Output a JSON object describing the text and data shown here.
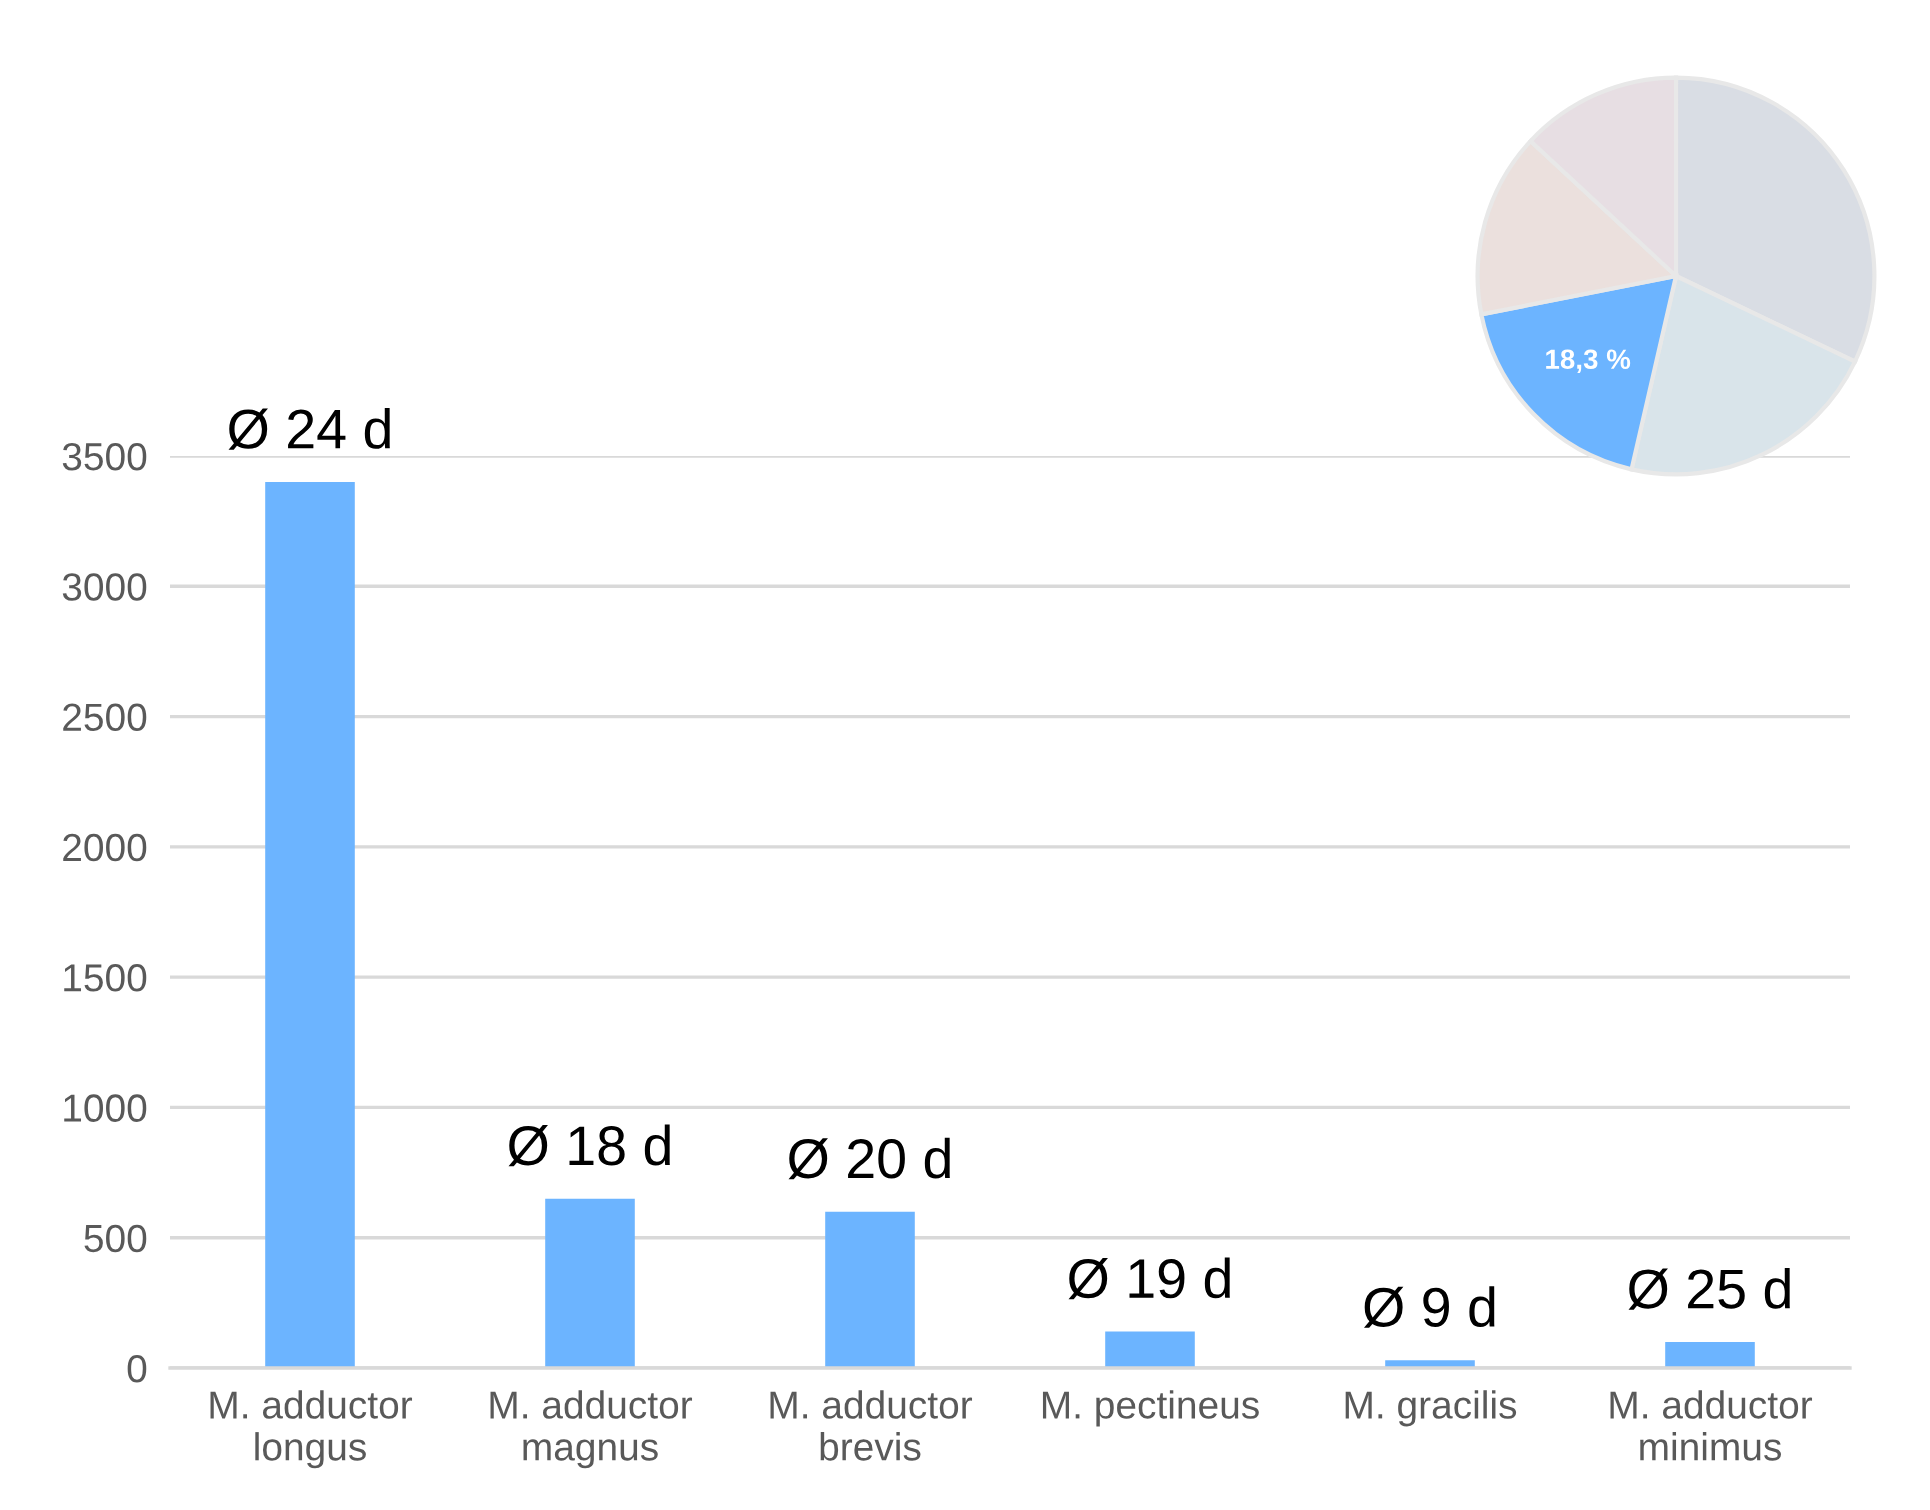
{
  "chart_data": [
    {
      "type": "bar",
      "categories": [
        "M. adductor\nlongus",
        "M. adductor\nmagnus",
        "M. adductor\nbrevis",
        "M. pectineus",
        "M. gracilis",
        "M. adductor\nminimus"
      ],
      "values": [
        3400,
        650,
        600,
        140,
        30,
        100
      ],
      "color": "#6cb4ff",
      "ylim": [
        0,
        3500
      ],
      "yticks": [
        0,
        500,
        1000,
        1500,
        2000,
        2500,
        3000,
        3500
      ],
      "grid": "y",
      "legend": false,
      "annotations": [
        {
          "text": "Ø 24 d",
          "x": "M. adductor\nlongus",
          "y": 3400
        },
        {
          "text": "Ø 18 d",
          "x": "M. adductor\nmagnus",
          "y": 650
        },
        {
          "text": "Ø 20 d",
          "x": "M. adductor\nbrevis",
          "y": 600
        },
        {
          "text": "Ø 19 d",
          "x": "M. pectineus",
          "y": 140
        },
        {
          "text": "Ø 9 d",
          "x": "M. gracilis",
          "y": 30
        },
        {
          "text": "Ø 25 d",
          "x": "M. adductor\nminimus",
          "y": 100
        }
      ]
    },
    {
      "type": "pie",
      "categories": [
        null,
        null,
        null,
        null,
        null
      ],
      "values": [
        32.1,
        21.5,
        18.3,
        15.0,
        13.1
      ],
      "colors": [
        "#d9dde4",
        "#d9e4ea",
        "#6cb4ff",
        "#ebe0dd",
        "#e7dee3"
      ],
      "value_labels": [
        null,
        null,
        "18,3 %",
        null,
        null
      ],
      "legend": false
    }
  ]
}
